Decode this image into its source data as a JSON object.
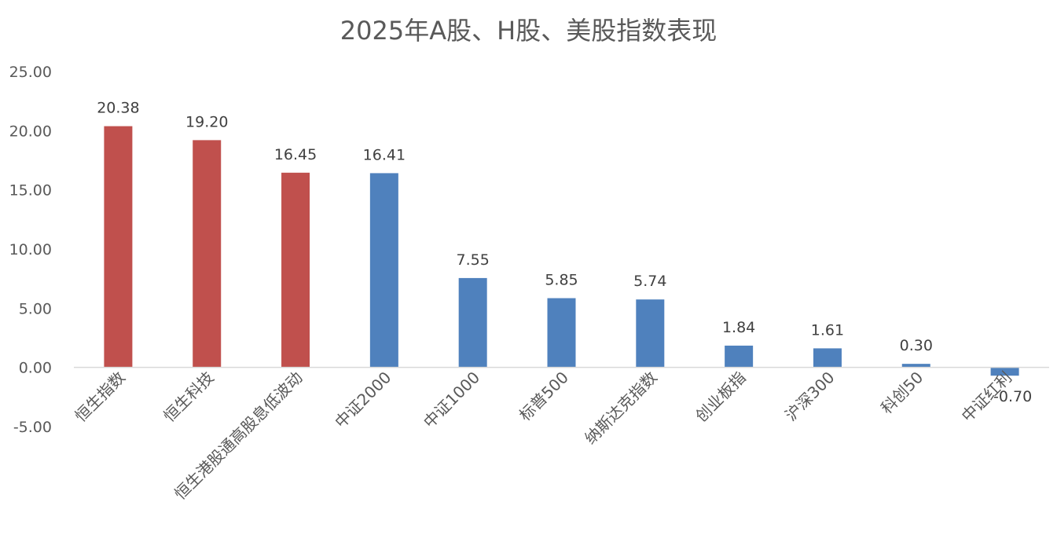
{
  "chart_data": {
    "type": "bar",
    "title": "2025年A股、H股、美股指数表现",
    "xlabel": "",
    "ylabel": "",
    "ylim": [
      -5,
      25
    ],
    "y_ticks": [
      "25.00",
      "20.00",
      "15.00",
      "10.00",
      "5.00",
      "0.00",
      "-5.00"
    ],
    "grid": false,
    "categories": [
      "恒生指数",
      "恒生科技",
      "恒生港股通高股息低波动",
      "中证2000",
      "中证1000",
      "标普500",
      "纳斯达克指数",
      "创业板指",
      "沪深300",
      "科创50",
      "中证红利"
    ],
    "values": [
      20.38,
      19.2,
      16.45,
      16.41,
      7.55,
      5.85,
      5.74,
      1.84,
      1.61,
      0.3,
      -0.7
    ],
    "value_labels": [
      "20.38",
      "19.20",
      "16.45",
      "16.41",
      "7.55",
      "5.85",
      "5.74",
      "1.84",
      "1.61",
      "0.30",
      "-0.70"
    ],
    "bar_colors": [
      "#C0504D",
      "#C0504D",
      "#C0504D",
      "#4F81BD",
      "#4F81BD",
      "#4F81BD",
      "#4F81BD",
      "#4F81BD",
      "#4F81BD",
      "#4F81BD",
      "#4F81BD"
    ],
    "axis_color": "#D9D9D9"
  }
}
